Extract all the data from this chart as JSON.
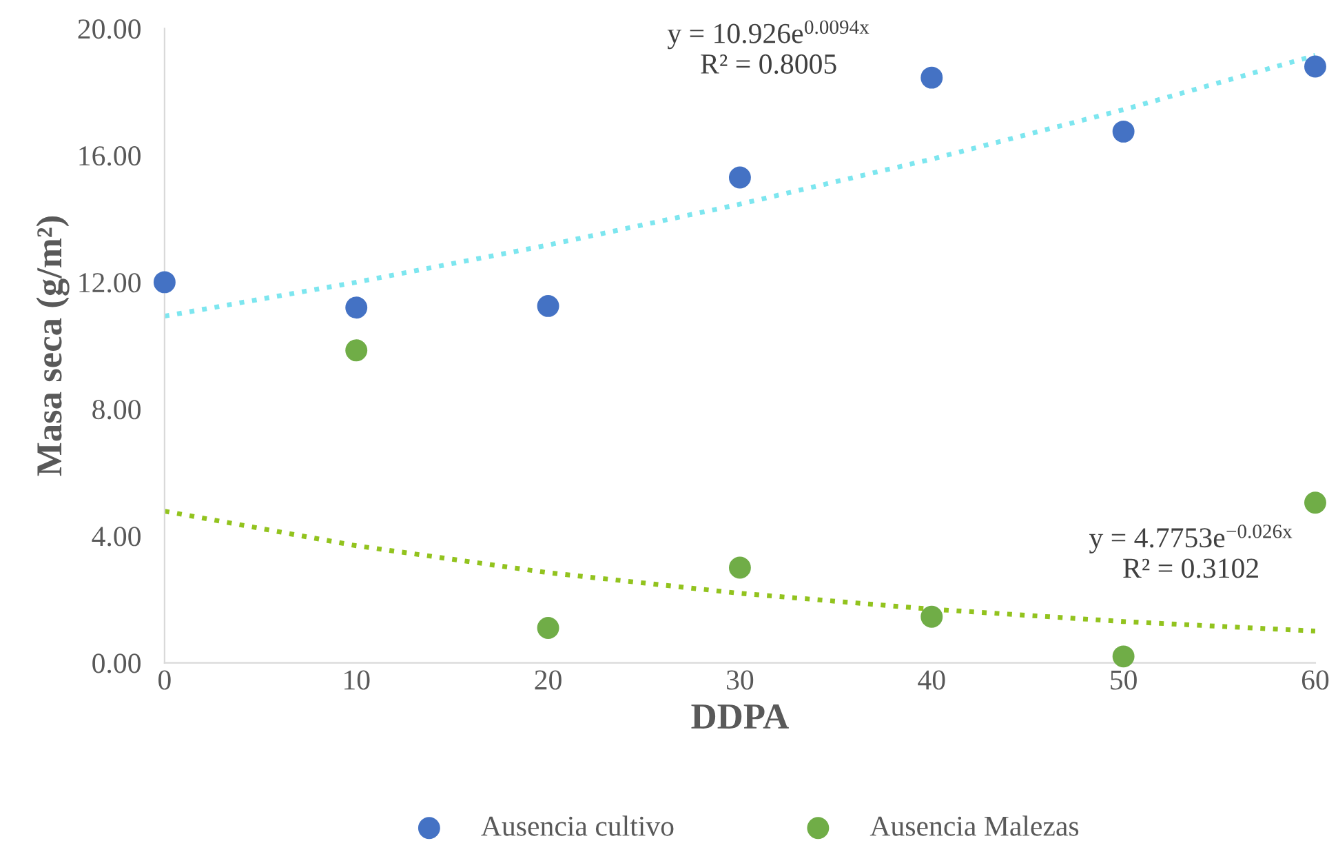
{
  "chart_data": {
    "type": "scatter",
    "xlabel": "DDPA",
    "ylabel": "Masa seca (g/m²)",
    "xlim": [
      0,
      60
    ],
    "xticks": [
      0,
      10,
      20,
      30,
      40,
      50,
      60
    ],
    "ylim": [
      0,
      20
    ],
    "yticks": [
      {
        "value": 0,
        "label": "0.00"
      },
      {
        "value": 4,
        "label": "4.00"
      },
      {
        "value": 8,
        "label": "8.00"
      },
      {
        "value": 12,
        "label": "12.00"
      },
      {
        "value": 16,
        "label": "16.00"
      },
      {
        "value": 20,
        "label": "20.00"
      }
    ],
    "grid": false,
    "legend": "bottom",
    "marker": "circle",
    "series": [
      {
        "name": "Ausencia cultivo",
        "color": "#4472c4",
        "x": [
          0,
          10,
          20,
          30,
          40,
          50,
          60
        ],
        "values": [
          12.0,
          11.2,
          11.25,
          15.3,
          18.45,
          16.75,
          18.8
        ]
      },
      {
        "name": "Ausencia Malezas",
        "color": "#70ad47",
        "x": [
          10,
          20,
          30,
          40,
          50,
          60
        ],
        "values": [
          9.85,
          1.1,
          3.0,
          1.45,
          0.2,
          5.05
        ]
      },
      {
        "type": "line",
        "marker": "none",
        "line_style": "dotted",
        "color": "#7de6ef",
        "x": [
          0,
          10,
          20,
          30,
          40,
          50,
          60
        ],
        "values": [
          10.93,
          12.0,
          13.17,
          14.46,
          15.88,
          17.44,
          19.15
        ]
      },
      {
        "type": "line",
        "marker": "none",
        "line_style": "dotted",
        "color": "#92c31e",
        "x": [
          0,
          10,
          20,
          30,
          40,
          50,
          60
        ],
        "values": [
          4.78,
          3.69,
          2.84,
          2.19,
          1.69,
          1.3,
          1.0
        ]
      }
    ],
    "annotations": [
      "y = 10.926e$^{0.0094x}$",
      "R² = 0.8005",
      "y = 4.7753e$^{−0.026x}$",
      "R² = 0.3102"
    ]
  }
}
